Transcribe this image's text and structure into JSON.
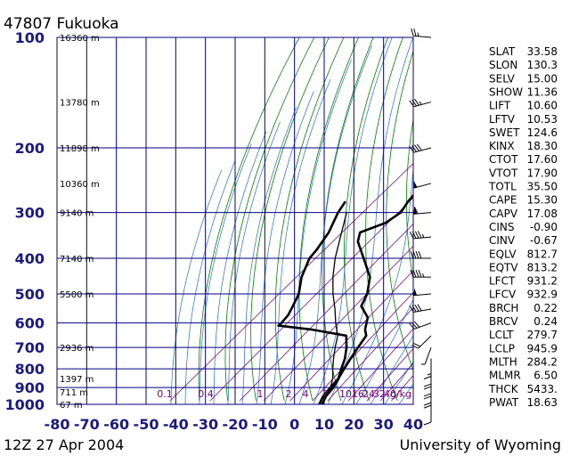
{
  "header": {
    "station": "47807 Fukuoka"
  },
  "footer": {
    "time": "12Z 27 Apr 2004",
    "credit": "University of Wyoming"
  },
  "chart_data": {
    "type": "line",
    "pressure_levels": [
      100,
      200,
      300,
      400,
      500,
      600,
      700,
      800,
      900,
      1000
    ],
    "temperature_ticks": [
      -80,
      -70,
      -60,
      -50,
      -40,
      -30,
      -20,
      -10,
      0,
      10,
      20,
      30,
      40
    ],
    "heights": [
      {
        "p": 100,
        "label": "16360 m"
      },
      {
        "p": 150,
        "label": "13780 m"
      },
      {
        "p": 200,
        "label": "11898 m"
      },
      {
        "p": 250,
        "label": "10360 m"
      },
      {
        "p": 300,
        "label": "9140 m"
      },
      {
        "p": 400,
        "label": "7140 m"
      },
      {
        "p": 500,
        "label": "5500 m"
      },
      {
        "p": 700,
        "label": "2936 m"
      },
      {
        "p": 850,
        "label": "1397 m"
      },
      {
        "p": 925,
        "label": "711 m"
      },
      {
        "p": 1000,
        "label": "67 m"
      }
    ],
    "mixing_ratio_labels": [
      "0.1",
      "0.4",
      "1",
      "2",
      "4",
      "7",
      "10",
      "16",
      "24",
      "32",
      "40",
      "g/kg"
    ],
    "series": [
      {
        "values": [
          [
            100,
            -58
          ],
          [
            110,
            -58
          ],
          [
            125,
            -56
          ],
          [
            140,
            -57
          ],
          [
            150,
            -55
          ],
          [
            160,
            -54
          ],
          [
            175,
            -53
          ],
          [
            190,
            -50
          ],
          [
            200,
            -51
          ],
          [
            215,
            -48
          ],
          [
            230,
            -47
          ],
          [
            250,
            -46
          ],
          [
            265,
            -42
          ],
          [
            280,
            -41
          ],
          [
            300,
            -39
          ],
          [
            320,
            -40
          ],
          [
            340,
            -45
          ],
          [
            360,
            -42
          ],
          [
            400,
            -33
          ],
          [
            450,
            -23
          ],
          [
            500,
            -17
          ],
          [
            540,
            -14
          ],
          [
            580,
            -7
          ],
          [
            625,
            -3
          ],
          [
            650,
            0
          ],
          [
            700,
            2
          ],
          [
            750,
            4
          ],
          [
            800,
            6
          ],
          [
            850,
            8
          ],
          [
            900,
            10
          ],
          [
            950,
            11
          ],
          [
            1000,
            13
          ]
        ]
      },
      {
        "values": [
          [
            280,
            -63
          ],
          [
            300,
            -61
          ],
          [
            340,
            -56
          ],
          [
            380,
            -53
          ],
          [
            400,
            -52
          ],
          [
            450,
            -47
          ],
          [
            500,
            -41
          ],
          [
            540,
            -38
          ],
          [
            570,
            -36
          ],
          [
            600,
            -35
          ],
          [
            610,
            -35
          ],
          [
            625,
            -22
          ],
          [
            650,
            -7
          ],
          [
            700,
            -2
          ],
          [
            750,
            2
          ],
          [
            800,
            5
          ],
          [
            850,
            8
          ],
          [
            900,
            9
          ],
          [
            950,
            10
          ],
          [
            1000,
            12
          ]
        ]
      },
      {
        "values": [
          [
            300,
            -58
          ],
          [
            350,
            -50
          ],
          [
            400,
            -43
          ],
          [
            450,
            -36
          ],
          [
            500,
            -29
          ],
          [
            550,
            -22
          ],
          [
            600,
            -16
          ],
          [
            650,
            -10
          ],
          [
            700,
            -6
          ],
          [
            750,
            -2
          ],
          [
            800,
            2
          ],
          [
            850,
            6
          ],
          [
            900,
            9
          ],
          [
            950,
            11
          ],
          [
            1000,
            13
          ]
        ]
      }
    ],
    "wind_barbs": [
      {
        "p": 100,
        "dir": 275,
        "spd": 25
      },
      {
        "p": 150,
        "dir": 255,
        "spd": 35
      },
      {
        "p": 200,
        "dir": 255,
        "spd": 40
      },
      {
        "p": 250,
        "dir": 255,
        "spd": 50
      },
      {
        "p": 300,
        "dir": 265,
        "spd": 60
      },
      {
        "p": 350,
        "dir": 265,
        "spd": 45
      },
      {
        "p": 400,
        "dir": 270,
        "spd": 40
      },
      {
        "p": 450,
        "dir": 270,
        "spd": 45
      },
      {
        "p": 500,
        "dir": 265,
        "spd": 50
      },
      {
        "p": 550,
        "dir": 260,
        "spd": 40
      },
      {
        "p": 600,
        "dir": 250,
        "spd": 30
      },
      {
        "p": 650,
        "dir": 225,
        "spd": 20
      },
      {
        "p": 700,
        "dir": 200,
        "spd": 5
      },
      {
        "p": 750,
        "dir": 180,
        "spd": 15
      },
      {
        "p": 800,
        "dir": 180,
        "spd": 20
      },
      {
        "p": 850,
        "dir": 180,
        "spd": 20
      },
      {
        "p": 900,
        "dir": 180,
        "spd": 20
      },
      {
        "p": 1000,
        "dir": 180,
        "spd": 10
      }
    ]
  },
  "indices": [
    {
      "key": "SLAT",
      "val": "33.58"
    },
    {
      "key": "SLON",
      "val": "130.3"
    },
    {
      "key": "SELV",
      "val": "15.00"
    },
    {
      "key": "SHOW",
      "val": "11.36"
    },
    {
      "key": "LIFT",
      "val": "10.60"
    },
    {
      "key": "LFTV",
      "val": "10.53"
    },
    {
      "key": "SWET",
      "val": "124.6"
    },
    {
      "key": "KINX",
      "val": "18.30"
    },
    {
      "key": "CTOT",
      "val": "17.60"
    },
    {
      "key": "VTOT",
      "val": "17.90"
    },
    {
      "key": "TOTL",
      "val": "35.50"
    },
    {
      "key": "CAPE",
      "val": "15.30"
    },
    {
      "key": "CAPV",
      "val": "17.08"
    },
    {
      "key": "CINS",
      "val": "-0.90"
    },
    {
      "key": "CINV",
      "val": "-0.67"
    },
    {
      "key": "EQLV",
      "val": "812.7"
    },
    {
      "key": "EQTV",
      "val": "813.2"
    },
    {
      "key": "LFCT",
      "val": "931.2"
    },
    {
      "key": "LFCV",
      "val": "932.9"
    },
    {
      "key": "BRCH",
      "val": "0.22"
    },
    {
      "key": "BRCV",
      "val": "0.24"
    },
    {
      "key": "LCLT",
      "val": "279.7"
    },
    {
      "key": "LCLP",
      "val": "945.9"
    },
    {
      "key": "MLTH",
      "val": "284.2"
    },
    {
      "key": "MLMR",
      "val": "6.50"
    },
    {
      "key": "THCK",
      "val": "5433."
    },
    {
      "key": "PWAT",
      "val": "18.63"
    }
  ],
  "colors": {
    "grid": "#000080",
    "dry_adiabat": "#008000",
    "moist_adiabat": "#1e6ed2",
    "mixing_ratio": "#800080",
    "sounding": "#000000",
    "axis_labels": "#1a1a80"
  }
}
